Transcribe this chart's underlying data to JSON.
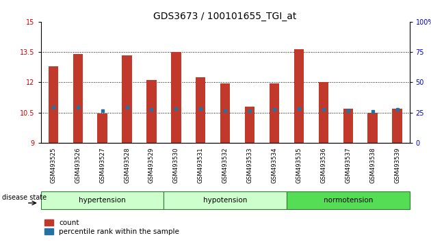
{
  "title": "GDS3673 / 100101655_TGI_at",
  "samples": [
    "GSM493525",
    "GSM493526",
    "GSM493527",
    "GSM493528",
    "GSM493529",
    "GSM493530",
    "GSM493531",
    "GSM493532",
    "GSM493533",
    "GSM493534",
    "GSM493535",
    "GSM493536",
    "GSM493537",
    "GSM493538",
    "GSM493539"
  ],
  "count_values": [
    12.8,
    13.4,
    10.45,
    13.35,
    12.1,
    13.5,
    12.25,
    11.95,
    10.8,
    11.95,
    13.65,
    12.0,
    10.7,
    10.5,
    10.7
  ],
  "percentile_values": [
    10.75,
    10.75,
    10.6,
    10.75,
    10.65,
    10.7,
    10.7,
    10.6,
    10.6,
    10.65,
    10.7,
    10.65,
    10.6,
    10.55,
    10.65
  ],
  "bar_color": "#c0392b",
  "marker_color": "#2471a3",
  "ymin": 9,
  "ymax": 15,
  "yticks_left": [
    9,
    10.5,
    12,
    13.5,
    15
  ],
  "yticks_right": [
    0,
    25,
    50,
    75,
    100
  ],
  "ylabel_left_color": "#cc0000",
  "ylabel_right_color": "#0000cc",
  "bg_color": "#ffffff",
  "plot_bg_color": "#ffffff",
  "disease_label": "disease state",
  "legend_count": "count",
  "legend_percentile": "percentile rank within the sample",
  "title_fontsize": 10,
  "tick_fontsize": 7,
  "bar_width": 0.4,
  "hypertension_color": "#ccffcc",
  "hypotension_color": "#ccffcc",
  "normotension_color": "#55dd55",
  "group_separator_color": "#228822"
}
